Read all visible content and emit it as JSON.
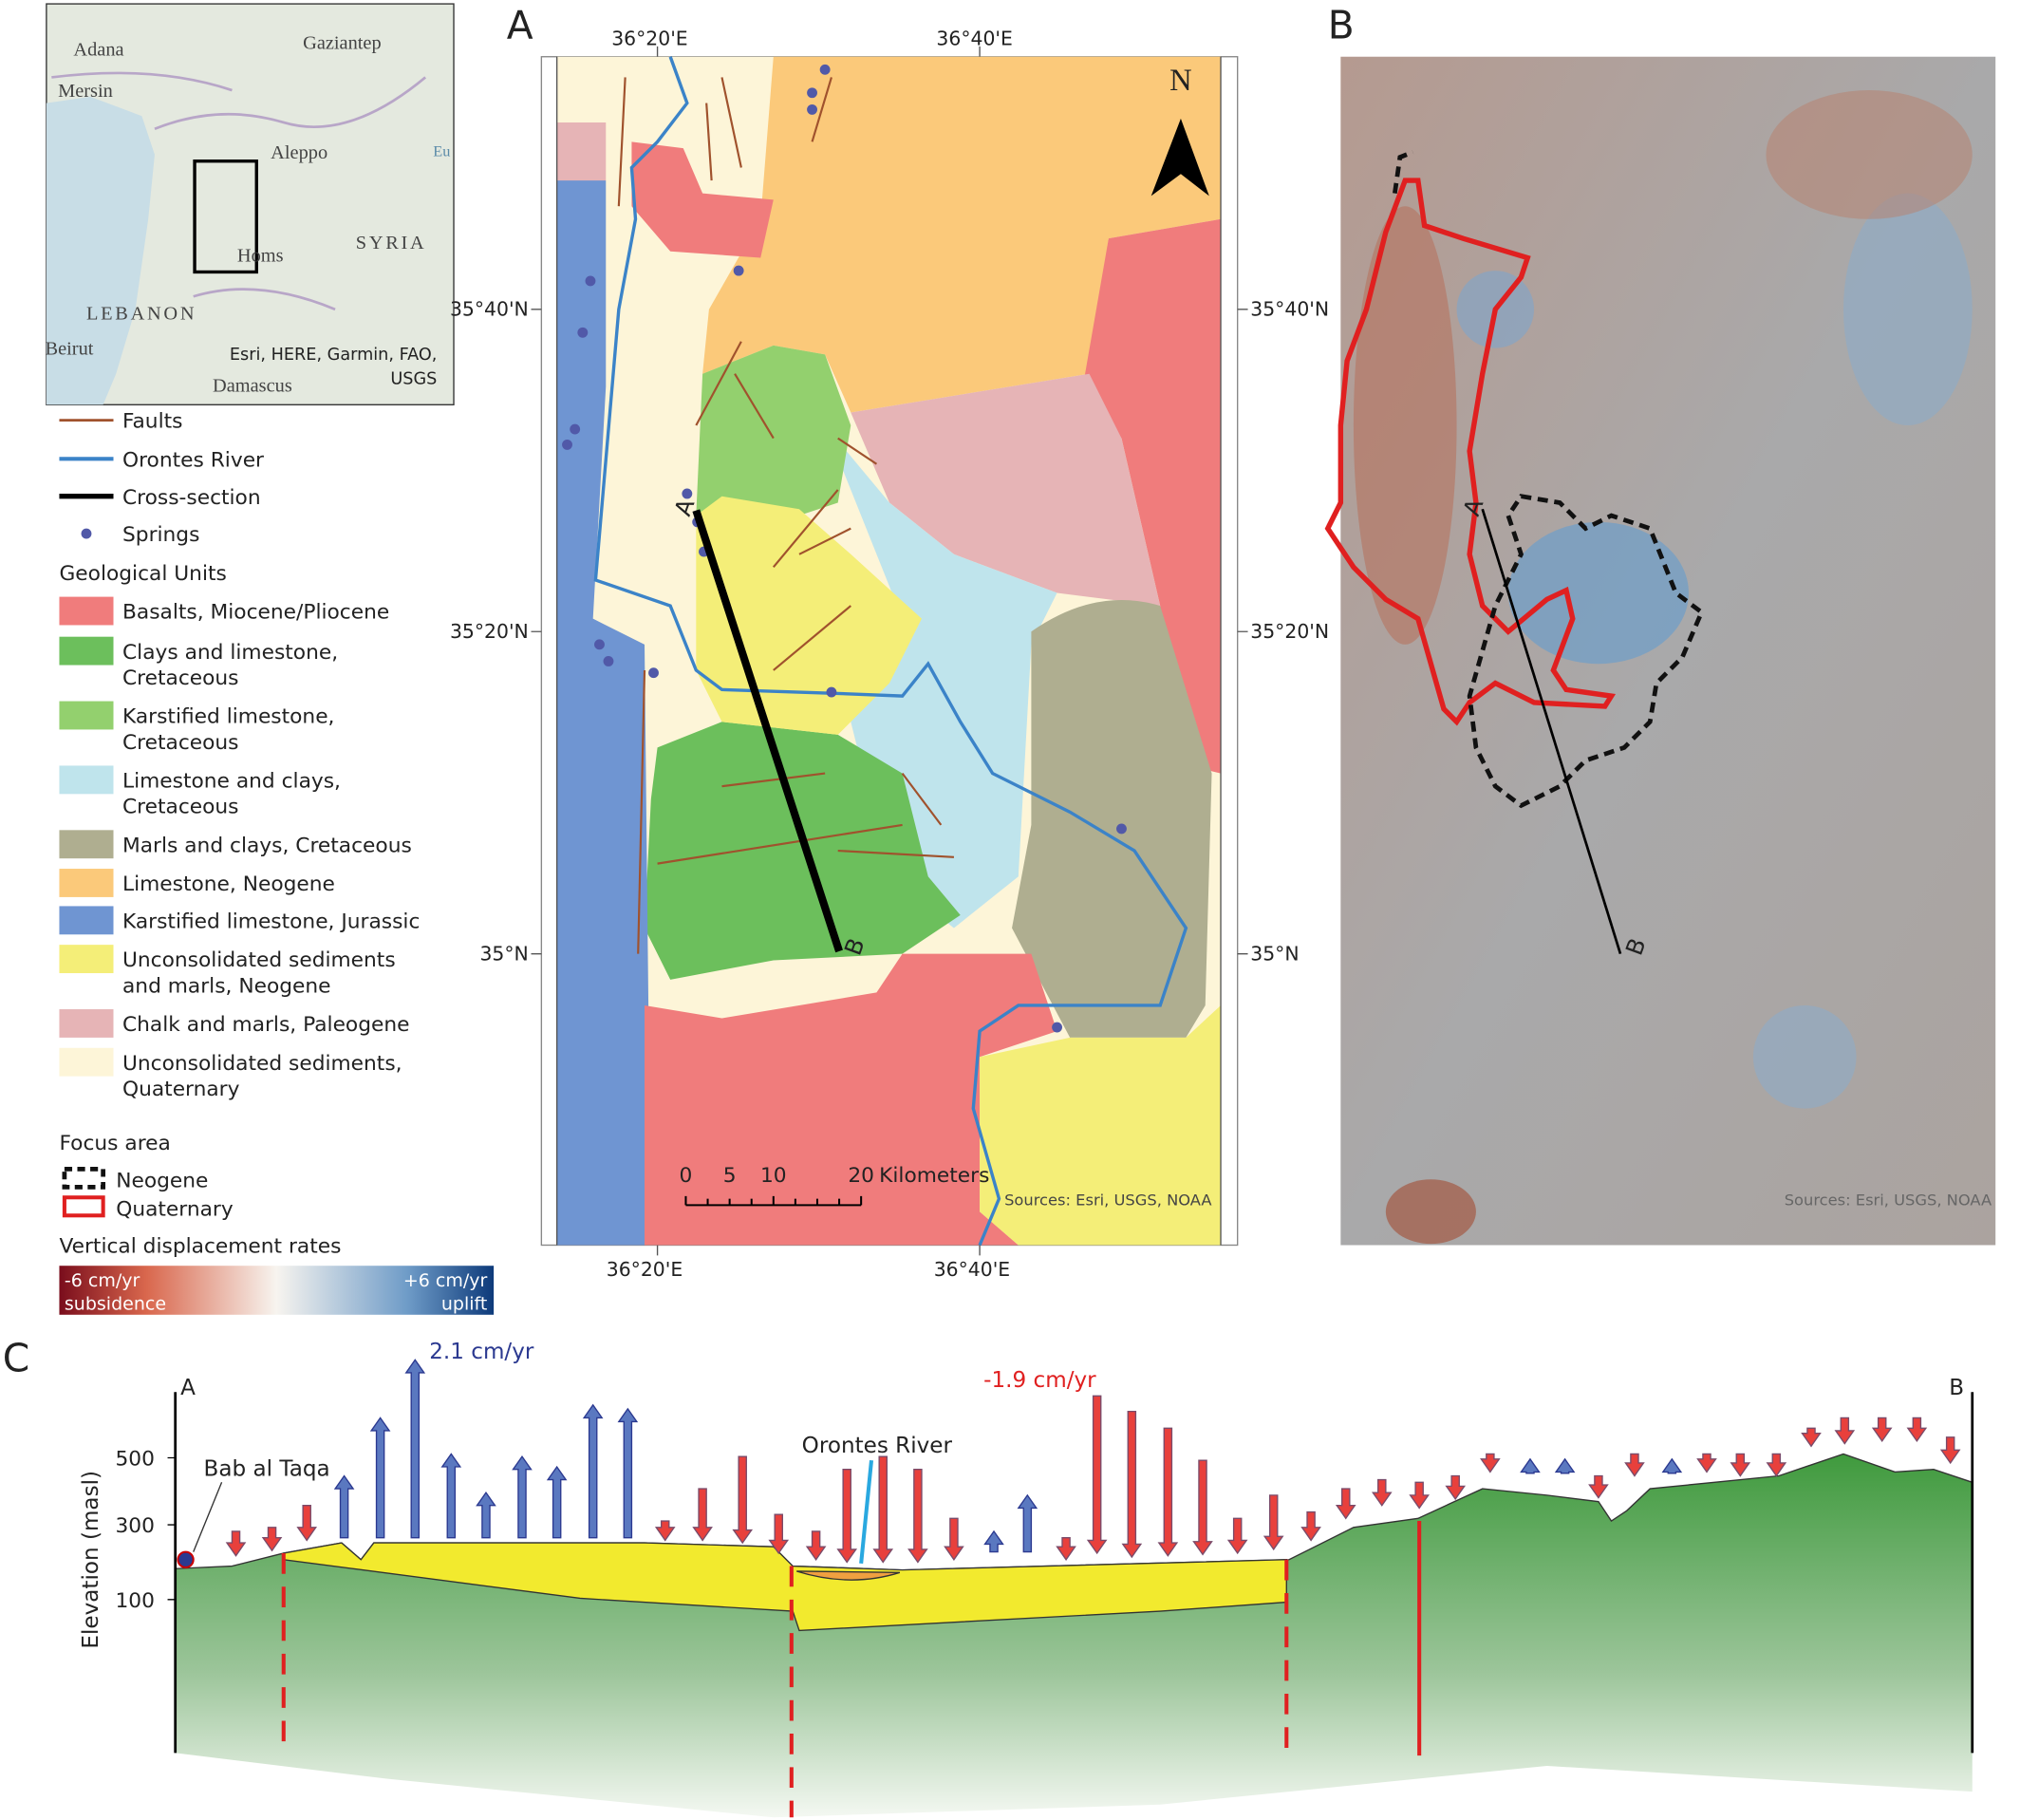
{
  "inset_map": {
    "places": [
      "Adana",
      "Gaziantep",
      "Mersin",
      "Aleppo",
      "Homs",
      "SYRIA",
      "LEBANON",
      "Beirut",
      "Damascus",
      "Eu"
    ],
    "credit": [
      "Esri, HERE, Garmin, FAO,",
      "USGS"
    ]
  },
  "legend": {
    "symbols": [
      "Faults",
      "Orontes River",
      "Cross-section",
      "Springs"
    ],
    "units_title": "Geological Units",
    "units": [
      {
        "lines": [
          "Basalts, Miocene/Pliocene"
        ],
        "color": "#f07c7c"
      },
      {
        "lines": [
          "Clays and limestone,",
          "Cretaceous"
        ],
        "color": "#6cbf5c"
      },
      {
        "lines": [
          "Karstified limestone,",
          "Cretaceous"
        ],
        "color": "#93d06e"
      },
      {
        "lines": [
          "Limestone and clays,",
          "Cretaceous"
        ],
        "color": "#bfe4ec"
      },
      {
        "lines": [
          "Marls and clays, Cretaceous"
        ],
        "color": "#afae90"
      },
      {
        "lines": [
          "Limestone, Neogene"
        ],
        "color": "#fbc97a"
      },
      {
        "lines": [
          "Karstified limestone, Jurassic"
        ],
        "color": "#6f95d2"
      },
      {
        "lines": [
          "Unconsolidated sediments",
          "and marls, Neogene"
        ],
        "color": "#f4ee78"
      },
      {
        "lines": [
          "Chalk and marls, Paleogene"
        ],
        "color": "#e6b4b6"
      },
      {
        "lines": [
          "Unconsolidated sediments,",
          "Quaternary"
        ],
        "color": "#fdf5d8"
      }
    ],
    "focus_title": "Focus area",
    "focus_items": [
      "Neogene",
      "Quaternary"
    ],
    "rates_title": "Vertical displacement rates",
    "rates_min": "-6 cm/yr",
    "rates_max": "+6 cm/yr",
    "rates_min_note": "subsidence",
    "rates_max_note": "uplift"
  },
  "panel_a": {
    "label": "A",
    "lon_ticks": [
      "36°20'E",
      "36°40'E"
    ],
    "lat_ticks": [
      "35°40'N",
      "35°20'N",
      "35°N"
    ],
    "north": "N",
    "scale_ticks": [
      0,
      5,
      10,
      20
    ],
    "scale_unit": "Kilometers",
    "source": "Sources: Esri, USGS, NOAA",
    "section_ends": [
      "A",
      "B"
    ]
  },
  "panel_b": {
    "label": "B",
    "source": "Sources: Esri, USGS, NOAA",
    "section_ends": [
      "A",
      "B"
    ]
  },
  "panel_c": {
    "label": "C",
    "y_axis_title": "Elevation (masl)",
    "yticks": [
      500,
      300,
      100
    ],
    "section_ends": [
      "A",
      "B"
    ],
    "site": "Bab al Taqa",
    "river": "Orontes River",
    "max_uplift": "2.1 cm/yr",
    "max_subsidence": "-1.9 cm/yr"
  }
}
